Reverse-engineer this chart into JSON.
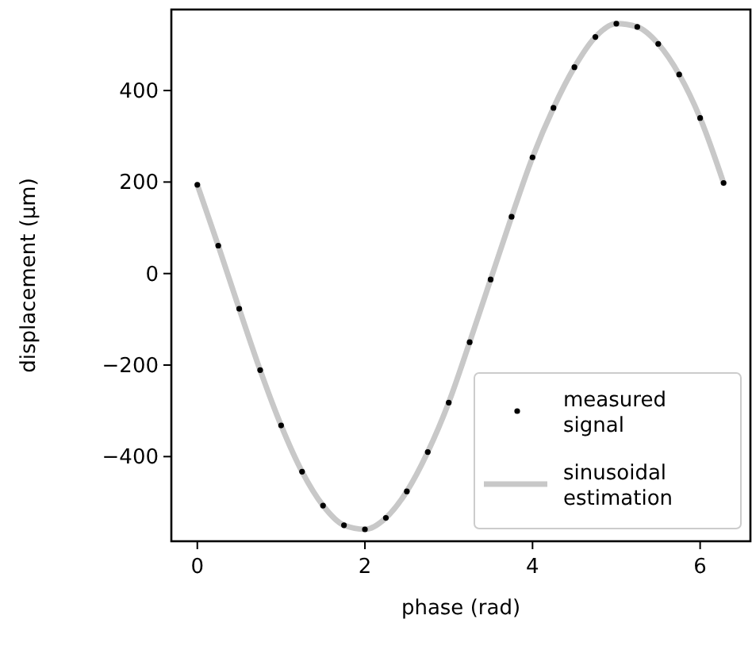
{
  "chart_data": {
    "type": "line",
    "xlabel": "phase (rad)",
    "ylabel": "displacement (µm)",
    "x": [
      0,
      0.25,
      0.5,
      0.75,
      1,
      1.25,
      1.5,
      1.75,
      2,
      2.25,
      2.5,
      2.75,
      3,
      3.25,
      3.5,
      3.75,
      4,
      4.25,
      4.5,
      4.75,
      5,
      5.25,
      5.5,
      5.75,
      6,
      6.28
    ],
    "series": [
      {
        "name": "measured signal",
        "type": "scatter",
        "marker": "circle",
        "color": "#000000",
        "values": [
          194,
          61,
          -77,
          -211,
          -332,
          -433,
          -507,
          -550,
          -559,
          -534,
          -476,
          -390,
          -282,
          -150,
          -13,
          124,
          254,
          362,
          451,
          517,
          546,
          539,
          502,
          435,
          340,
          198
        ]
      },
      {
        "name": "sinusoidal estimation",
        "type": "line",
        "color": "#c8c8c8",
        "values": [
          194,
          61,
          -77,
          -211,
          -332,
          -433,
          -507,
          -550,
          -559,
          -534,
          -476,
          -390,
          -282,
          -150,
          -13,
          124,
          254,
          362,
          451,
          517,
          546,
          539,
          502,
          435,
          340,
          198
        ]
      }
    ],
    "xlim": [
      -0.31,
      6.6
    ],
    "ylim": [
      -585,
      577
    ],
    "xticks": [
      0,
      2,
      4,
      6
    ],
    "yticks": [
      -400,
      -200,
      0,
      200,
      400
    ],
    "legend": "bottom right",
    "grid": false
  }
}
